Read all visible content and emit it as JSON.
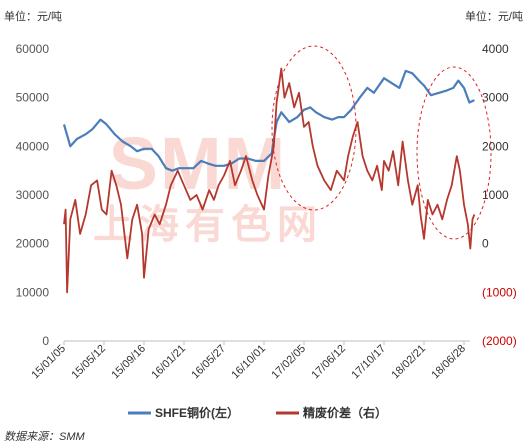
{
  "chart_data": {
    "type": "line",
    "left_unit_label": "单位：元/吨",
    "right_unit_label": "单位：元/吨",
    "x_ticks": [
      "15/01/05",
      "15/05/12",
      "15/09/16",
      "16/01/21",
      "16/05/27",
      "16/10/01",
      "17/02/05",
      "17/06/12",
      "17/10/17",
      "18/02/21",
      "18/06/28"
    ],
    "y_left": {
      "min": 0,
      "max": 60000,
      "ticks": [
        "0",
        "10000",
        "20000",
        "30000",
        "40000",
        "50000",
        "60000"
      ]
    },
    "y_right": {
      "min": -2000,
      "max": 4000,
      "ticks": [
        "(2000)",
        "(1000)",
        "0",
        "1000",
        "2000",
        "3000",
        "4000"
      ]
    },
    "series": [
      {
        "name": "SHFE铜价(左）",
        "axis": "left",
        "color": "#4a7ebb",
        "points": [
          [
            "15/01/05",
            44500
          ],
          [
            "15/01/25",
            40000
          ],
          [
            "15/02/15",
            41500
          ],
          [
            "15/03/15",
            42500
          ],
          [
            "15/04/05",
            43500
          ],
          [
            "15/05/01",
            45500
          ],
          [
            "15/05/20",
            44500
          ],
          [
            "15/06/15",
            42500
          ],
          [
            "15/07/10",
            41000
          ],
          [
            "15/08/05",
            40000
          ],
          [
            "15/08/25",
            39000
          ],
          [
            "15/09/16",
            39500
          ],
          [
            "15/10/10",
            39500
          ],
          [
            "15/11/01",
            38000
          ],
          [
            "15/11/25",
            35500
          ],
          [
            "15/12/15",
            35000
          ],
          [
            "16/01/05",
            35500
          ],
          [
            "16/01/21",
            35500
          ],
          [
            "16/02/20",
            35500
          ],
          [
            "16/03/15",
            37000
          ],
          [
            "16/04/05",
            36500
          ],
          [
            "16/04/30",
            36000
          ],
          [
            "16/05/27",
            36000
          ],
          [
            "16/06/20",
            36500
          ],
          [
            "16/07/15",
            37500
          ],
          [
            "16/08/10",
            37500
          ],
          [
            "16/09/05",
            37000
          ],
          [
            "16/10/01",
            37000
          ],
          [
            "16/10/25",
            38500
          ],
          [
            "16/11/10",
            45000
          ],
          [
            "16/11/25",
            47000
          ],
          [
            "16/12/20",
            45000
          ],
          [
            "17/01/15",
            46000
          ],
          [
            "17/02/05",
            47500
          ],
          [
            "17/02/25",
            48000
          ],
          [
            "17/03/15",
            47000
          ],
          [
            "17/04/10",
            46000
          ],
          [
            "17/05/05",
            45500
          ],
          [
            "17/05/25",
            46000
          ],
          [
            "17/06/12",
            46000
          ],
          [
            "17/07/05",
            47500
          ],
          [
            "17/08/01",
            50000
          ],
          [
            "17/08/25",
            52000
          ],
          [
            "17/09/15",
            51000
          ],
          [
            "17/10/17",
            54000
          ],
          [
            "17/11/10",
            53000
          ],
          [
            "17/12/05",
            52000
          ],
          [
            "17/12/25",
            55500
          ],
          [
            "18/01/15",
            55000
          ],
          [
            "18/02/05",
            53500
          ],
          [
            "18/02/21",
            52500
          ],
          [
            "18/03/15",
            50500
          ],
          [
            "18/04/10",
            51000
          ],
          [
            "18/05/05",
            51500
          ],
          [
            "18/05/25",
            52000
          ],
          [
            "18/06/10",
            53500
          ],
          [
            "18/06/28",
            52000
          ],
          [
            "18/07/15",
            49000
          ],
          [
            "18/07/31",
            49500
          ]
        ]
      },
      {
        "name": "精废价差（右）",
        "axis": "right",
        "color": "#b5382f",
        "points": [
          [
            "15/01/05",
            400
          ],
          [
            "15/01/10",
            700
          ],
          [
            "15/01/15",
            -1000
          ],
          [
            "15/01/25",
            500
          ],
          [
            "15/02/10",
            900
          ],
          [
            "15/02/25",
            200
          ],
          [
            "15/03/15",
            600
          ],
          [
            "15/04/01",
            1200
          ],
          [
            "15/04/20",
            1300
          ],
          [
            "15/05/05",
            700
          ],
          [
            "15/05/20",
            600
          ],
          [
            "15/06/05",
            1500
          ],
          [
            "15/06/20",
            1200
          ],
          [
            "15/07/05",
            800
          ],
          [
            "15/07/25",
            -300
          ],
          [
            "15/08/10",
            500
          ],
          [
            "15/08/25",
            800
          ],
          [
            "15/09/10",
            200
          ],
          [
            "15/09/16",
            -700
          ],
          [
            "15/10/01",
            300
          ],
          [
            "15/10/20",
            600
          ],
          [
            "15/11/05",
            400
          ],
          [
            "15/11/25",
            800
          ],
          [
            "15/12/10",
            1200
          ],
          [
            "16/01/01",
            1500
          ],
          [
            "16/01/21",
            1200
          ],
          [
            "16/02/10",
            900
          ],
          [
            "16/03/01",
            1000
          ],
          [
            "16/03/20",
            700
          ],
          [
            "16/04/10",
            1100
          ],
          [
            "16/04/25",
            900
          ],
          [
            "16/05/10",
            1200
          ],
          [
            "16/05/27",
            1400
          ],
          [
            "16/06/15",
            1700
          ],
          [
            "16/07/01",
            1200
          ],
          [
            "16/07/20",
            1500
          ],
          [
            "16/08/05",
            1800
          ],
          [
            "16/08/25",
            1300
          ],
          [
            "16/09/10",
            1000
          ],
          [
            "16/10/01",
            700
          ],
          [
            "16/10/15",
            1400
          ],
          [
            "16/11/01",
            2000
          ],
          [
            "16/11/10",
            2900
          ],
          [
            "16/11/25",
            3600
          ],
          [
            "16/12/05",
            3000
          ],
          [
            "16/12/20",
            3300
          ],
          [
            "17/01/05",
            2800
          ],
          [
            "17/01/20",
            3100
          ],
          [
            "17/02/05",
            2400
          ],
          [
            "17/02/20",
            2500
          ],
          [
            "17/03/05",
            2000
          ],
          [
            "17/03/20",
            1600
          ],
          [
            "17/04/10",
            1300
          ],
          [
            "17/05/01",
            1100
          ],
          [
            "17/05/20",
            1500
          ],
          [
            "17/06/12",
            1300
          ],
          [
            "17/06/25",
            1800
          ],
          [
            "17/07/10",
            2200
          ],
          [
            "17/07/25",
            2500
          ],
          [
            "17/08/10",
            1800
          ],
          [
            "17/08/25",
            1500
          ],
          [
            "17/09/10",
            1300
          ],
          [
            "17/09/25",
            1600
          ],
          [
            "17/10/10",
            1100
          ],
          [
            "17/10/17",
            1700
          ],
          [
            "17/11/01",
            1500
          ],
          [
            "17/11/15",
            1900
          ],
          [
            "17/12/01",
            1200
          ],
          [
            "17/12/15",
            2100
          ],
          [
            "18/01/01",
            1300
          ],
          [
            "18/01/15",
            800
          ],
          [
            "18/02/01",
            1200
          ],
          [
            "18/02/10",
            600
          ],
          [
            "18/02/21",
            100
          ],
          [
            "18/03/05",
            900
          ],
          [
            "18/03/20",
            600
          ],
          [
            "18/04/05",
            800
          ],
          [
            "18/04/20",
            500
          ],
          [
            "18/05/05",
            900
          ],
          [
            "18/05/20",
            1200
          ],
          [
            "18/06/05",
            1800
          ],
          [
            "18/06/15",
            1500
          ],
          [
            "18/06/28",
            800
          ],
          [
            "18/07/10",
            400
          ],
          [
            "18/07/18",
            -100
          ],
          [
            "18/07/25",
            500
          ],
          [
            "18/07/31",
            600
          ]
        ]
      }
    ],
    "source": "数据来源：SMM"
  },
  "watermark": {
    "text_en": "SMM",
    "text_cn": "上海有色网"
  }
}
